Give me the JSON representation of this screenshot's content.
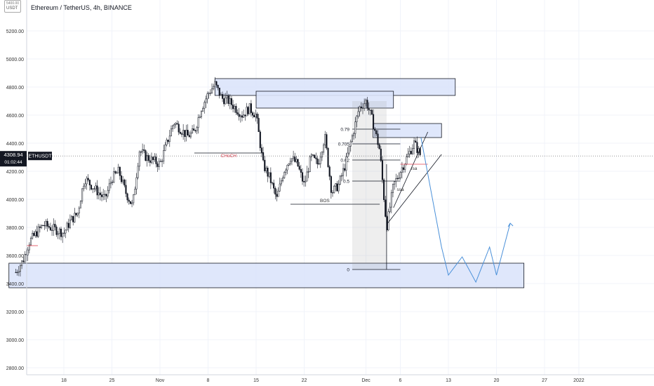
{
  "header": {
    "title": "Ethereum / TetherUS, 4h, BINANCE",
    "currency_badge": "USDT",
    "currency_badge_top": "5400.00"
  },
  "price_tag": {
    "price": "4308.94",
    "countdown": "01:02:44",
    "symbol": "ETHUSDT"
  },
  "chart_data": {
    "type": "candlestick",
    "symbol": "ETHUSDT",
    "interval": "4h",
    "exchange": "BINANCE",
    "y_axis": {
      "range": [
        2700,
        5400
      ],
      "ticks": [
        "5200.00",
        "5000.00",
        "4800.00",
        "4600.00",
        "4400.00",
        "4200.00",
        "4000.00",
        "3800.00",
        "3600.00",
        "3400.00",
        "3200.00",
        "3000.00",
        "2800.00"
      ]
    },
    "x_axis": {
      "ticks": [
        "18",
        "25",
        "Nov",
        "8",
        "15",
        "22",
        "Dec",
        "6",
        "13",
        "20",
        "27",
        "2022"
      ]
    },
    "price_path": [
      [
        "2021-10-11",
        3480
      ],
      [
        "2021-10-12",
        3560
      ],
      [
        "2021-10-13",
        3700
      ],
      [
        "2021-10-15",
        3820
      ],
      [
        "2021-10-17",
        3780
      ],
      [
        "2021-10-18",
        3760
      ],
      [
        "2021-10-19",
        3850
      ],
      [
        "2021-10-20",
        3900
      ],
      [
        "2021-10-21",
        4150
      ],
      [
        "2021-10-22",
        4100
      ],
      [
        "2021-10-23",
        4050
      ],
      [
        "2021-10-24",
        4000
      ],
      [
        "2021-10-25",
        4150
      ],
      [
        "2021-10-26",
        4200
      ],
      [
        "2021-10-27",
        4050
      ],
      [
        "2021-10-28",
        3950
      ],
      [
        "2021-10-29",
        4350
      ],
      [
        "2021-10-30",
        4300
      ],
      [
        "2021-11-01",
        4250
      ],
      [
        "2021-11-02",
        4400
      ],
      [
        "2021-11-03",
        4550
      ],
      [
        "2021-11-04",
        4500
      ],
      [
        "2021-11-05",
        4450
      ],
      [
        "2021-11-06",
        4480
      ],
      [
        "2021-11-07",
        4650
      ],
      [
        "2021-11-08",
        4750
      ],
      [
        "2021-11-09",
        4820
      ],
      [
        "2021-11-10",
        4720
      ],
      [
        "2021-11-11",
        4700
      ],
      [
        "2021-11-12",
        4650
      ],
      [
        "2021-11-13",
        4600
      ],
      [
        "2021-11-14",
        4650
      ],
      [
        "2021-11-15",
        4600
      ],
      [
        "2021-11-16",
        4250
      ],
      [
        "2021-11-17",
        4150
      ],
      [
        "2021-11-18",
        4000
      ],
      [
        "2021-11-19",
        4200
      ],
      [
        "2021-11-20",
        4300
      ],
      [
        "2021-11-21",
        4250
      ],
      [
        "2021-11-22",
        4100
      ],
      [
        "2021-11-23",
        4300
      ],
      [
        "2021-11-24",
        4250
      ],
      [
        "2021-11-25",
        4450
      ],
      [
        "2021-11-26",
        4050
      ],
      [
        "2021-11-27",
        4100
      ],
      [
        "2021-11-28",
        4250
      ],
      [
        "2021-11-29",
        4450
      ],
      [
        "2021-11-30",
        4650
      ],
      [
        "2021-12-01",
        4700
      ],
      [
        "2021-12-02",
        4550
      ],
      [
        "2021-12-03",
        4350
      ],
      [
        "2021-12-04",
        3800
      ],
      [
        "2021-12-05",
        4100
      ],
      [
        "2021-12-06",
        4200
      ],
      [
        "2021-12-07",
        4300
      ],
      [
        "2021-12-08",
        4400
      ],
      [
        "2021-12-09",
        4308.94
      ]
    ],
    "zones": [
      {
        "from": "2021-11-09",
        "to": "2021-12-14",
        "low": 4740,
        "high": 4860
      },
      {
        "from": "2021-11-15",
        "to": "2021-12-05",
        "low": 4650,
        "high": 4770
      },
      {
        "from": "2021-12-02",
        "to": "2021-12-12",
        "low": 4440,
        "high": 4540
      },
      {
        "from": "2021-10-10",
        "to": "2021-12-24",
        "low": 3370,
        "high": 3545
      }
    ],
    "fib_levels": [
      {
        "label": "0.79",
        "value": 4500
      },
      {
        "label": "0.705",
        "value": 4395
      },
      {
        "label": "0.62",
        "value": 4280
      },
      {
        "label": "0.5",
        "value": 4130
      },
      {
        "label": "0",
        "value": 3500
      }
    ],
    "annotations": [
      {
        "text": "CHoCH",
        "x": "2021-11-11",
        "y": 4300
      },
      {
        "text": "BOS",
        "x": "2021-11-25",
        "y": 3980
      },
      {
        "text": "ssa",
        "x": "2021-12-06",
        "y": 4060
      },
      {
        "text": "fsa",
        "x": "2021-12-08",
        "y": 4210
      }
    ],
    "projection": [
      [
        "2021-12-09",
        4440
      ],
      [
        "2021-12-12",
        3660
      ],
      [
        "2021-12-13",
        3460
      ],
      [
        "2021-12-15",
        3590
      ],
      [
        "2021-12-17",
        3410
      ],
      [
        "2021-12-19",
        3660
      ],
      [
        "2021-12-20",
        3460
      ],
      [
        "2021-12-22",
        3830
      ]
    ]
  }
}
